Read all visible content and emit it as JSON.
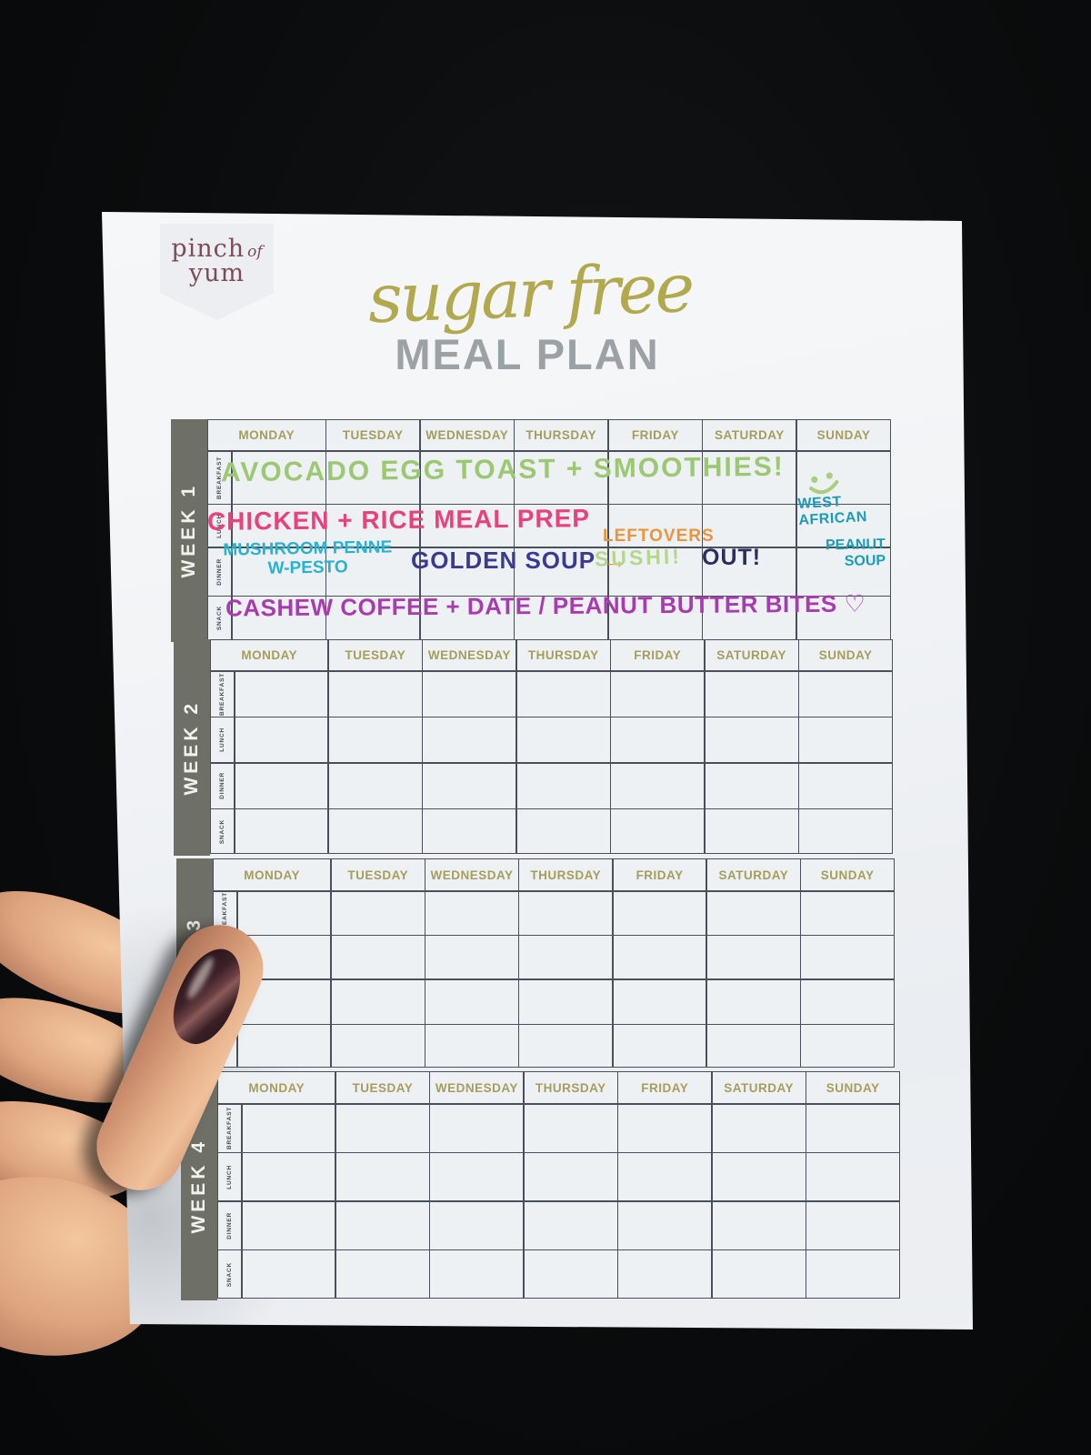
{
  "scene": {
    "description": "photo of a printed sugar free meal plan sheet held by a hand on black background"
  },
  "logo": {
    "word1": "pinch",
    "word2": "of",
    "word3": "yum",
    "text_color": "#7a4d58",
    "banner_color": "#eceef1"
  },
  "title": {
    "script": "sugar free",
    "main": "MEAL PLAN",
    "script_color": "#b2a94f",
    "main_color": "#9ba1a5"
  },
  "calendar": {
    "days": [
      "MONDAY",
      "TUESDAY",
      "WEDNESDAY",
      "THURSDAY",
      "FRIDAY",
      "SATURDAY",
      "SUNDAY"
    ],
    "meals": [
      "BREAKFAST",
      "LUNCH",
      "DINNER",
      "SNACK"
    ],
    "weeks": [
      {
        "label": "WEEK 1"
      },
      {
        "label": "WEEK 2"
      },
      {
        "label": "WEEK 3"
      },
      {
        "label": "WEEK 4"
      }
    ],
    "header_color": "#a49d5c",
    "grid_color": "#4a505a",
    "week_bar_color": "#6e7067"
  },
  "week1_notes": {
    "breakfast": {
      "text": "AVOCADO EGG TOAST + SMOOTHIES!",
      "color": "#9cc873"
    },
    "breakfast_icon": "smiley-face",
    "smiley_color": "#a8cf7e",
    "lunch": {
      "text": "CHICKEN + RICE MEAL PREP",
      "color": "#e8417b"
    },
    "lunch_friday": {
      "text": "LEFTOVERS",
      "arrow": "→",
      "color": "#ef9338"
    },
    "sunday_lunch": {
      "text": "WEST\nAFRICAN",
      "color": "#1a9cb9"
    },
    "dinner_monday": {
      "text": "MUSHROOM PENNE\nW-PESTO",
      "color": "#28b2d2"
    },
    "dinner_wednesday": {
      "text": "GOLDEN SOUP",
      "color": "#3a3a92"
    },
    "dinner_friday": {
      "text": "SUSHI!",
      "color": "#b4d78c"
    },
    "dinner_saturday": {
      "text": "OUT!",
      "color": "#2b2f5e"
    },
    "sunday_dinner": {
      "text": "PEANUT\nSOUP",
      "color": "#1a9cb9"
    },
    "snack": {
      "text": "CASHEW COFFEE + DATE / PEANUT BUTTER BITES ♡",
      "color": "#a93bb0"
    }
  }
}
